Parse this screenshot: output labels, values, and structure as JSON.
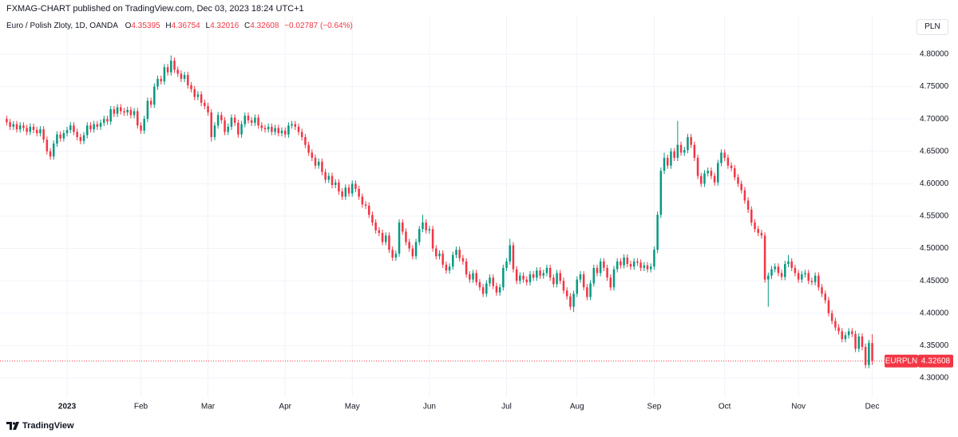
{
  "header": {
    "text": "FXMAG-CHART published on TradingView.com, Dec 03, 2023 18:24 UTC+1"
  },
  "chart_data": {
    "type": "candlestick",
    "title": "Euro / Polish Zloty, 1D, OANDA",
    "ohlc_labels": [
      "O",
      "H",
      "L",
      "C"
    ],
    "change": "−0.02787 (−0.64%)",
    "currency": "PLN",
    "symbol": "EURPLN",
    "up_color": "#089981",
    "down_color": "#f23645",
    "grid": true,
    "xlim": [
      -2,
      270
    ],
    "xticks": [
      {
        "value": 18,
        "label": "2023"
      },
      {
        "value": 40,
        "label": "Feb"
      },
      {
        "value": 60,
        "label": "Mar"
      },
      {
        "value": 83,
        "label": "Apr"
      },
      {
        "value": 103,
        "label": "May"
      },
      {
        "value": 126,
        "label": "Jun"
      },
      {
        "value": 149,
        "label": "Jul"
      },
      {
        "value": 170,
        "label": "Aug"
      },
      {
        "value": 193,
        "label": "Sep"
      },
      {
        "value": 214,
        "label": "Oct"
      },
      {
        "value": 236,
        "label": "Nov"
      },
      {
        "value": 258,
        "label": "Dec"
      }
    ],
    "ylim": [
      4.2704,
      4.8591
    ],
    "yticks": [
      {
        "value": 4.3,
        "label": "4.30000"
      },
      {
        "value": 4.35,
        "label": "4.35000"
      },
      {
        "value": 4.4,
        "label": "4.40000"
      },
      {
        "value": 4.45,
        "label": "4.45000"
      },
      {
        "value": 4.5,
        "label": "4.50000"
      },
      {
        "value": 4.55,
        "label": "4.55000"
      },
      {
        "value": 4.6,
        "label": "4.60000"
      },
      {
        "value": 4.65,
        "label": "4.65000"
      },
      {
        "value": 4.7,
        "label": "4.70000"
      },
      {
        "value": 4.75,
        "label": "4.75000"
      },
      {
        "value": 4.8,
        "label": "4.80000"
      }
    ],
    "open": [
      4.7,
      4.695,
      4.688,
      4.692,
      4.684,
      4.69,
      4.686,
      4.68,
      4.688,
      4.683,
      4.678,
      4.684,
      4.668,
      4.65,
      4.642,
      4.662,
      4.676,
      4.67,
      4.678,
      4.683,
      4.69,
      4.68,
      4.672,
      4.666,
      4.675,
      4.69,
      4.684,
      4.692,
      4.688,
      4.694,
      4.7,
      4.696,
      4.715,
      4.708,
      4.718,
      4.712,
      4.71,
      4.714,
      4.706,
      4.712,
      4.69,
      4.682,
      4.7,
      4.728,
      4.722,
      4.75,
      4.762,
      4.758,
      4.78,
      4.772,
      4.79,
      4.776,
      4.77,
      4.762,
      4.768,
      4.752,
      4.746,
      4.734,
      4.738,
      4.725,
      4.72,
      4.71,
      4.672,
      4.69,
      4.706,
      4.698,
      4.68,
      4.688,
      4.702,
      4.694,
      4.676,
      4.692,
      4.705,
      4.698,
      4.694,
      4.702,
      4.69,
      4.686,
      4.684,
      4.688,
      4.68,
      4.686,
      4.678,
      4.682,
      4.676,
      4.69,
      4.692,
      4.688,
      4.68,
      4.672,
      4.66,
      4.648,
      4.64,
      4.628,
      4.634,
      4.618,
      4.606,
      4.612,
      4.598,
      4.602,
      4.588,
      4.58,
      4.594,
      4.585,
      4.6,
      4.592,
      4.58,
      4.568,
      4.566,
      4.552,
      4.54,
      4.528,
      4.524,
      4.51,
      4.52,
      4.498,
      4.486,
      4.492,
      4.54,
      4.526,
      4.51,
      4.5,
      4.488,
      4.51,
      4.53,
      4.54,
      4.528,
      4.53,
      4.5,
      4.488,
      4.492,
      4.475,
      4.466,
      4.472,
      4.49,
      4.498,
      4.485,
      4.48,
      4.46,
      4.452,
      4.462,
      4.448,
      4.44,
      4.43,
      4.446,
      4.455,
      4.442,
      4.432,
      4.44,
      4.47,
      4.48,
      4.505,
      4.468,
      4.45,
      4.458,
      4.452,
      4.448,
      4.46,
      4.455,
      4.466,
      4.458,
      4.462,
      4.47,
      4.455,
      4.445,
      4.462,
      4.45,
      4.435,
      4.426,
      4.41,
      4.43,
      4.452,
      4.46,
      4.44,
      4.425,
      4.446,
      4.47,
      4.462,
      4.48,
      4.47,
      4.455,
      4.44,
      4.468,
      4.48,
      4.474,
      4.486,
      4.476,
      4.472,
      4.48,
      4.478,
      4.47,
      4.474,
      4.468,
      4.472,
      4.498,
      4.552,
      4.62,
      4.64,
      4.628,
      4.65,
      4.64,
      4.66,
      4.648,
      4.652,
      4.672,
      4.66,
      4.64,
      4.612,
      4.6,
      4.616,
      4.62,
      4.612,
      4.602,
      4.632,
      4.648,
      4.64,
      4.628,
      4.624,
      4.61,
      4.6,
      4.59,
      4.574,
      4.56,
      4.54,
      4.53,
      4.524,
      4.52,
      4.452,
      4.458,
      4.468,
      4.472,
      4.462,
      4.456,
      4.476,
      4.48,
      4.47,
      4.462,
      4.452,
      4.46,
      4.462,
      4.45,
      4.448,
      4.458,
      4.44,
      4.43,
      4.42,
      4.4,
      4.388,
      4.378,
      4.372,
      4.36,
      4.366,
      4.372,
      4.368,
      4.345,
      4.364,
      4.348,
      4.32,
      4.35395
    ],
    "high": [
      4.705,
      4.7,
      4.697,
      4.697,
      4.695,
      4.695,
      4.691,
      4.693,
      4.693,
      4.688,
      4.689,
      4.689,
      4.673,
      4.655,
      4.667,
      4.681,
      4.681,
      4.683,
      4.688,
      4.695,
      4.695,
      4.685,
      4.677,
      4.68,
      4.695,
      4.695,
      4.697,
      4.697,
      4.699,
      4.705,
      4.705,
      4.72,
      4.72,
      4.723,
      4.723,
      4.717,
      4.719,
      4.719,
      4.717,
      4.717,
      4.695,
      4.705,
      4.733,
      4.733,
      4.755,
      4.767,
      4.767,
      4.785,
      4.785,
      4.798,
      4.795,
      4.781,
      4.775,
      4.773,
      4.773,
      4.757,
      4.751,
      4.743,
      4.743,
      4.73,
      4.725,
      4.715,
      4.695,
      4.711,
      4.711,
      4.703,
      4.693,
      4.707,
      4.707,
      4.699,
      4.697,
      4.71,
      4.71,
      4.703,
      4.707,
      4.707,
      4.695,
      4.691,
      4.693,
      4.693,
      4.691,
      4.691,
      4.687,
      4.687,
      4.695,
      4.697,
      4.697,
      4.693,
      4.685,
      4.677,
      4.665,
      4.653,
      4.645,
      4.639,
      4.639,
      4.623,
      4.617,
      4.617,
      4.607,
      4.607,
      4.593,
      4.599,
      4.599,
      4.605,
      4.605,
      4.597,
      4.585,
      4.573,
      4.571,
      4.557,
      4.545,
      4.533,
      4.529,
      4.525,
      4.525,
      4.503,
      4.497,
      4.545,
      4.545,
      4.531,
      4.515,
      4.505,
      4.515,
      4.535,
      4.552,
      4.545,
      4.535,
      4.535,
      4.505,
      4.497,
      4.497,
      4.48,
      4.477,
      4.495,
      4.503,
      4.503,
      4.49,
      4.485,
      4.465,
      4.467,
      4.467,
      4.453,
      4.445,
      4.451,
      4.46,
      4.46,
      4.447,
      4.445,
      4.475,
      4.485,
      4.515,
      4.51,
      4.473,
      4.463,
      4.463,
      4.457,
      4.465,
      4.465,
      4.471,
      4.471,
      4.467,
      4.475,
      4.475,
      4.46,
      4.467,
      4.467,
      4.455,
      4.44,
      4.431,
      4.435,
      4.457,
      4.465,
      4.465,
      4.445,
      4.451,
      4.475,
      4.475,
      4.485,
      4.485,
      4.475,
      4.46,
      4.473,
      4.485,
      4.485,
      4.491,
      4.491,
      4.481,
      4.485,
      4.485,
      4.483,
      4.479,
      4.479,
      4.477,
      4.503,
      4.557,
      4.625,
      4.648,
      4.645,
      4.655,
      4.655,
      4.697,
      4.665,
      4.657,
      4.677,
      4.677,
      4.665,
      4.645,
      4.617,
      4.621,
      4.625,
      4.625,
      4.617,
      4.637,
      4.653,
      4.653,
      4.645,
      4.633,
      4.629,
      4.615,
      4.605,
      4.595,
      4.579,
      4.565,
      4.545,
      4.535,
      4.529,
      4.525,
      4.463,
      4.473,
      4.477,
      4.477,
      4.467,
      4.481,
      4.49,
      4.485,
      4.475,
      4.467,
      4.465,
      4.467,
      4.467,
      4.455,
      4.463,
      4.463,
      4.445,
      4.435,
      4.425,
      4.405,
      4.393,
      4.383,
      4.377,
      4.371,
      4.377,
      4.377,
      4.373,
      4.369,
      4.369,
      4.353,
      4.359,
      4.36754
    ],
    "low": [
      4.69,
      4.683,
      4.683,
      4.679,
      4.679,
      4.681,
      4.675,
      4.675,
      4.678,
      4.673,
      4.673,
      4.663,
      4.645,
      4.637,
      4.637,
      4.657,
      4.665,
      4.665,
      4.673,
      4.678,
      4.675,
      4.667,
      4.661,
      4.661,
      4.67,
      4.679,
      4.679,
      4.683,
      4.683,
      4.689,
      4.691,
      4.691,
      4.703,
      4.703,
      4.707,
      4.705,
      4.705,
      4.701,
      4.701,
      4.685,
      4.677,
      4.677,
      4.695,
      4.717,
      4.717,
      4.745,
      4.753,
      4.753,
      4.767,
      4.767,
      4.771,
      4.765,
      4.757,
      4.757,
      4.747,
      4.741,
      4.729,
      4.729,
      4.72,
      4.715,
      4.705,
      4.665,
      4.667,
      4.685,
      4.693,
      4.675,
      4.675,
      4.683,
      4.689,
      4.671,
      4.671,
      4.687,
      4.693,
      4.689,
      4.689,
      4.685,
      4.681,
      4.679,
      4.679,
      4.675,
      4.675,
      4.673,
      4.673,
      4.671,
      4.671,
      4.685,
      4.683,
      4.675,
      4.667,
      4.655,
      4.643,
      4.635,
      4.623,
      4.623,
      4.613,
      4.601,
      4.601,
      4.593,
      4.593,
      4.583,
      4.575,
      4.575,
      4.58,
      4.58,
      4.587,
      4.575,
      4.563,
      4.561,
      4.547,
      4.535,
      4.523,
      4.519,
      4.505,
      4.505,
      4.493,
      4.481,
      4.481,
      4.487,
      4.521,
      4.505,
      4.495,
      4.483,
      4.483,
      4.505,
      4.525,
      4.523,
      4.523,
      4.495,
      4.483,
      4.483,
      4.47,
      4.461,
      4.461,
      4.467,
      4.485,
      4.48,
      4.475,
      4.455,
      4.447,
      4.447,
      4.443,
      4.435,
      4.425,
      4.425,
      4.441,
      4.437,
      4.427,
      4.427,
      4.435,
      4.465,
      4.475,
      4.463,
      4.445,
      4.445,
      4.447,
      4.443,
      4.443,
      4.45,
      4.45,
      4.453,
      4.453,
      4.457,
      4.45,
      4.44,
      4.44,
      4.445,
      4.43,
      4.421,
      4.405,
      4.402,
      4.425,
      4.447,
      4.435,
      4.42,
      4.42,
      4.441,
      4.457,
      4.457,
      4.465,
      4.45,
      4.435,
      4.435,
      4.463,
      4.469,
      4.469,
      4.471,
      4.467,
      4.467,
      4.473,
      4.465,
      4.465,
      4.463,
      4.463,
      4.467,
      4.493,
      4.547,
      4.615,
      4.623,
      4.623,
      4.635,
      4.635,
      4.643,
      4.643,
      4.647,
      4.655,
      4.635,
      4.607,
      4.595,
      4.595,
      4.611,
      4.607,
      4.597,
      4.597,
      4.627,
      4.635,
      4.623,
      4.619,
      4.605,
      4.595,
      4.585,
      4.569,
      4.555,
      4.535,
      4.525,
      4.519,
      4.515,
      4.447,
      4.41,
      4.453,
      4.463,
      4.457,
      4.451,
      4.451,
      4.471,
      4.465,
      4.457,
      4.447,
      4.447,
      4.455,
      4.445,
      4.443,
      4.443,
      4.435,
      4.425,
      4.415,
      4.395,
      4.383,
      4.373,
      4.367,
      4.355,
      4.355,
      4.361,
      4.363,
      4.34,
      4.34,
      4.343,
      4.315,
      4.315,
      4.32016
    ],
    "close": [
      4.695,
      4.688,
      4.692,
      4.684,
      4.69,
      4.686,
      4.68,
      4.688,
      4.683,
      4.678,
      4.684,
      4.668,
      4.65,
      4.642,
      4.662,
      4.676,
      4.67,
      4.678,
      4.683,
      4.69,
      4.68,
      4.672,
      4.666,
      4.675,
      4.69,
      4.684,
      4.692,
      4.688,
      4.694,
      4.7,
      4.696,
      4.715,
      4.708,
      4.718,
      4.712,
      4.71,
      4.714,
      4.706,
      4.712,
      4.69,
      4.682,
      4.7,
      4.728,
      4.722,
      4.75,
      4.762,
      4.758,
      4.78,
      4.772,
      4.79,
      4.776,
      4.77,
      4.762,
      4.768,
      4.752,
      4.746,
      4.734,
      4.738,
      4.725,
      4.72,
      4.71,
      4.672,
      4.69,
      4.706,
      4.698,
      4.68,
      4.688,
      4.702,
      4.694,
      4.676,
      4.692,
      4.705,
      4.698,
      4.694,
      4.702,
      4.69,
      4.686,
      4.684,
      4.688,
      4.68,
      4.686,
      4.678,
      4.682,
      4.676,
      4.69,
      4.692,
      4.688,
      4.68,
      4.672,
      4.66,
      4.648,
      4.64,
      4.628,
      4.634,
      4.618,
      4.606,
      4.612,
      4.598,
      4.602,
      4.588,
      4.58,
      4.594,
      4.585,
      4.6,
      4.592,
      4.58,
      4.568,
      4.566,
      4.552,
      4.54,
      4.528,
      4.524,
      4.51,
      4.52,
      4.498,
      4.486,
      4.492,
      4.54,
      4.526,
      4.51,
      4.5,
      4.488,
      4.51,
      4.53,
      4.54,
      4.528,
      4.53,
      4.5,
      4.488,
      4.492,
      4.475,
      4.466,
      4.472,
      4.49,
      4.498,
      4.485,
      4.48,
      4.46,
      4.452,
      4.462,
      4.448,
      4.44,
      4.43,
      4.446,
      4.455,
      4.442,
      4.432,
      4.44,
      4.47,
      4.48,
      4.505,
      4.468,
      4.45,
      4.458,
      4.452,
      4.448,
      4.46,
      4.455,
      4.466,
      4.458,
      4.462,
      4.47,
      4.455,
      4.445,
      4.462,
      4.45,
      4.435,
      4.426,
      4.41,
      4.43,
      4.452,
      4.46,
      4.44,
      4.425,
      4.446,
      4.47,
      4.462,
      4.48,
      4.47,
      4.455,
      4.44,
      4.468,
      4.48,
      4.474,
      4.486,
      4.476,
      4.472,
      4.48,
      4.478,
      4.47,
      4.474,
      4.468,
      4.472,
      4.498,
      4.552,
      4.62,
      4.64,
      4.628,
      4.65,
      4.64,
      4.66,
      4.648,
      4.652,
      4.672,
      4.66,
      4.64,
      4.612,
      4.6,
      4.616,
      4.62,
      4.612,
      4.602,
      4.632,
      4.648,
      4.64,
      4.628,
      4.624,
      4.61,
      4.6,
      4.59,
      4.574,
      4.56,
      4.54,
      4.53,
      4.524,
      4.52,
      4.452,
      4.458,
      4.468,
      4.472,
      4.462,
      4.456,
      4.476,
      4.48,
      4.47,
      4.462,
      4.452,
      4.46,
      4.462,
      4.45,
      4.448,
      4.458,
      4.44,
      4.43,
      4.42,
      4.4,
      4.388,
      4.378,
      4.372,
      4.36,
      4.366,
      4.372,
      4.368,
      4.345,
      4.364,
      4.348,
      4.32,
      4.354,
      4.32608
    ]
  },
  "footer": {
    "logo_text": "TradingView"
  }
}
